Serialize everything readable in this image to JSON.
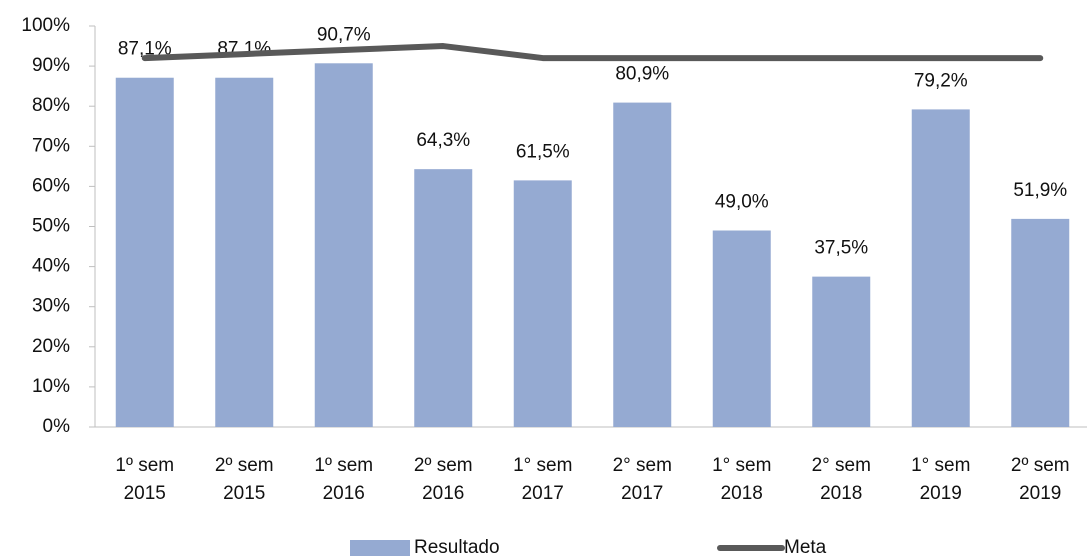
{
  "chart_data": {
    "type": "bar",
    "categories": [
      [
        "1º sem",
        "2015"
      ],
      [
        "2º sem",
        "2015"
      ],
      [
        "1º sem",
        "2016"
      ],
      [
        "2º sem",
        "2016"
      ],
      [
        "1° sem",
        "2017"
      ],
      [
        "2° sem",
        "2017"
      ],
      [
        "1° sem",
        "2018"
      ],
      [
        "2° sem",
        "2018"
      ],
      [
        "1° sem",
        "2019"
      ],
      [
        "2º sem",
        "2019"
      ]
    ],
    "series": [
      {
        "name": "Resultado",
        "type": "bar",
        "color": "#95aad2",
        "values": [
          87.1,
          87.1,
          90.7,
          64.3,
          61.5,
          80.9,
          49.0,
          37.5,
          79.2,
          51.9
        ],
        "value_labels": [
          "87,1%",
          "87,1%",
          "90,7%",
          "64,3%",
          "61,5%",
          "80,9%",
          "49,0%",
          "37,5%",
          "79,2%",
          "51,9%"
        ]
      },
      {
        "name": "Meta",
        "type": "line",
        "color": "#595959",
        "values": [
          92,
          93,
          94,
          95,
          92,
          92,
          92,
          92,
          92,
          92
        ]
      }
    ],
    "ylim": [
      0,
      100
    ],
    "yticks": [
      {
        "value": 0,
        "label": "0%"
      },
      {
        "value": 10,
        "label": "10%"
      },
      {
        "value": 20,
        "label": "20%"
      },
      {
        "value": 30,
        "label": "30%"
      },
      {
        "value": 40,
        "label": "40%"
      },
      {
        "value": 50,
        "label": "50%"
      },
      {
        "value": 60,
        "label": "60%"
      },
      {
        "value": 70,
        "label": "70%"
      },
      {
        "value": 80,
        "label": "80%"
      },
      {
        "value": 90,
        "label": "90%"
      },
      {
        "value": 100,
        "label": "100%"
      }
    ],
    "grid": false,
    "legend": "bottom"
  }
}
